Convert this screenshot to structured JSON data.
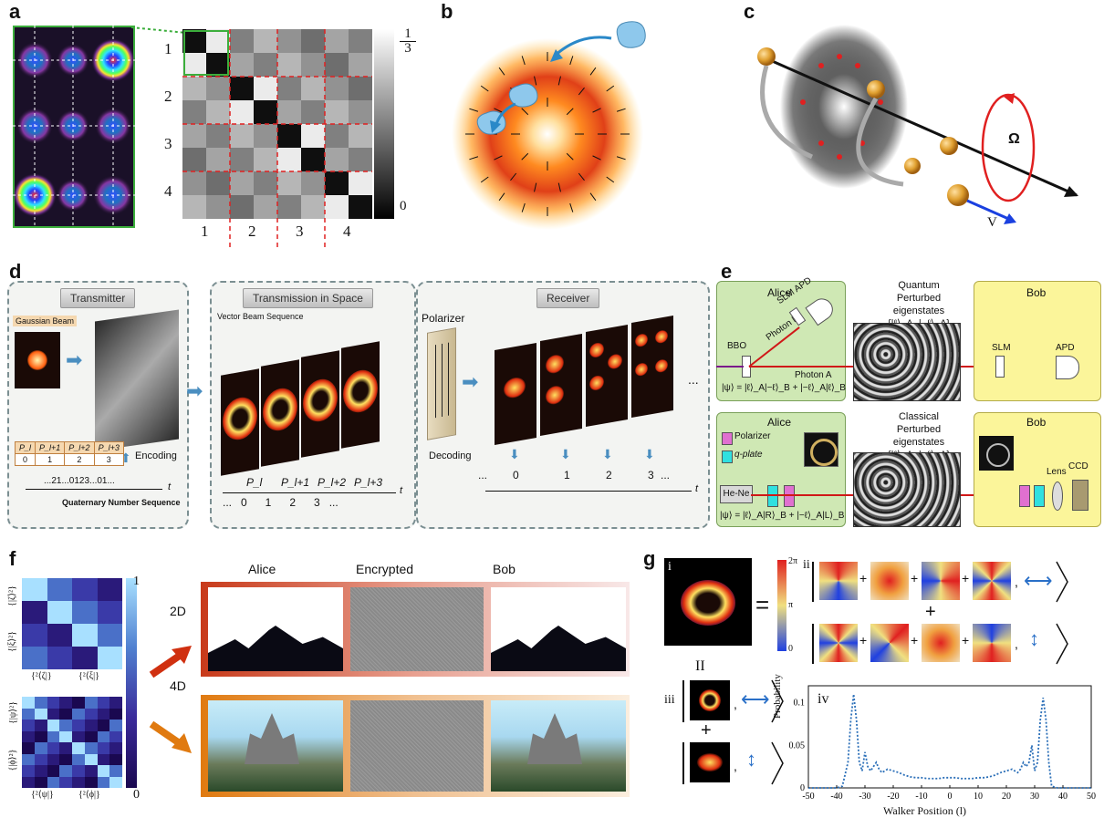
{
  "panels": {
    "a": "a",
    "b": "b",
    "c": "c",
    "d": "d",
    "e": "e",
    "f": "f",
    "g": "g"
  },
  "a": {
    "row_labels": [
      "1",
      "2",
      "3",
      "4"
    ],
    "col_labels": [
      "1",
      "2",
      "3",
      "4"
    ],
    "colorbar_top_num": "1",
    "colorbar_top_den": "3",
    "colorbar_bottom": "0"
  },
  "c": {
    "omega": "Ω",
    "v": "V"
  },
  "d": {
    "transmitter": "Transmitter",
    "transmission": "Transmission in Space",
    "receiver": "Receiver",
    "gaussian": "Gaussian Beam",
    "vector_seq": "Vector Beam Sequence",
    "polarizer": "Polarizer",
    "encoding": "Encoding",
    "decoding": "Decoding",
    "table_headers": [
      "P_l",
      "P_l+1",
      "P_l+2",
      "P_l+3"
    ],
    "table_values": [
      "0",
      "1",
      "2",
      "3"
    ],
    "sequence": "...21...0123...01...",
    "t1": "t",
    "quaternary": "Quaternary Number Sequence",
    "p_labels": [
      "P_l",
      "P_l+1",
      "P_l+2",
      "P_l+3"
    ],
    "mid_values": "...   0      1      2      3   ...",
    "t2": "t",
    "recv_values": [
      "...",
      "0",
      "1",
      "2",
      "3",
      "..."
    ],
    "t3": "t",
    "ellipsis": "..."
  },
  "e": {
    "alice1": "Alice",
    "bob1": "Bob",
    "quantum": "Quantum",
    "perturbed1": "Perturbed eigenstates",
    "set1": "{|ℓ⟩_A, |−ℓ⟩_A}",
    "bbo": "BBO",
    "slm_apd": "SLM APD",
    "photon_b": "Photon B",
    "photon_a": "Photon A",
    "psi1": "|ψ⟩ = |ℓ⟩_A|−ℓ⟩_B + |−ℓ⟩_A|ℓ⟩_B",
    "slm_bob": "SLM",
    "apd_bob": "APD",
    "alice2": "Alice",
    "bob2": "Bob",
    "classical": "Classical",
    "perturbed2": "Perturbed eigenstates",
    "set2": "{|ℓ⟩_A, |−ℓ⟩_A}",
    "legend_polarizer": "Polarizer",
    "legend_qplate": "q-plate",
    "hene": "He-Ne",
    "psi2": "|ψ⟩ = |ℓ⟩_A|R⟩_B + |−ℓ⟩_A|L⟩_B",
    "lens": "Lens",
    "ccd": "CCD"
  },
  "f": {
    "cb_top": "1",
    "cb_bottom": "0",
    "top_y1": "{|ζ⟩²}",
    "top_y2": "{|ξ⟩²}",
    "top_x1": "{²⟨ζ|}",
    "top_x2": "{²⟨ξ|}",
    "bot_y1": "{|ψ⟩²}",
    "bot_y2": "{|ϕ⟩²}",
    "bot_x1": "{²⟨ψ|}",
    "bot_x2": "{²⟨ϕ|}",
    "col_alice": "Alice",
    "col_encrypted": "Encrypted",
    "col_bob": "Bob",
    "row_2d": "2D",
    "row_4d": "4D"
  },
  "g": {
    "i": "i",
    "ii": "ii",
    "iii": "iii",
    "iv": "iv",
    "eq": "=",
    "plus": "+",
    "two_pi": "2π",
    "pi": "π",
    "zero": "0",
    "parallel": "II",
    "ylabel": "Probability",
    "xlabel": "Walker Position (l)",
    "yticks": [
      "0",
      "0.05",
      "0.1"
    ],
    "xticks": [
      "-50",
      "-40",
      "-30",
      "-20",
      "-10",
      "0",
      "10",
      "20",
      "30",
      "40",
      "50"
    ]
  },
  "chart_data": {
    "type": "line",
    "title": "",
    "xlabel": "Walker Position (l)",
    "ylabel": "Probability",
    "xlim": [
      -50,
      50
    ],
    "ylim": [
      0,
      0.12
    ],
    "grid": false,
    "line_style": "dotted",
    "color": "#2b6fb8",
    "x": [
      -50,
      -45,
      -40,
      -38,
      -36,
      -35,
      -34,
      -33,
      -32,
      -31,
      -30,
      -29,
      -28,
      -27,
      -26,
      -25,
      -24,
      -22,
      -20,
      -18,
      -16,
      -14,
      -12,
      -10,
      -8,
      -6,
      -4,
      -2,
      0,
      2,
      4,
      6,
      8,
      10,
      12,
      14,
      16,
      18,
      20,
      22,
      24,
      25,
      26,
      27,
      28,
      29,
      30,
      31,
      32,
      33,
      34,
      35,
      36,
      38,
      40,
      45,
      50
    ],
    "y": [
      0,
      0,
      0,
      0.002,
      0.03,
      0.08,
      0.11,
      0.08,
      0.03,
      0.02,
      0.042,
      0.025,
      0.02,
      0.025,
      0.03,
      0.022,
      0.018,
      0.022,
      0.02,
      0.018,
      0.015,
      0.013,
      0.012,
      0.012,
      0.011,
      0.011,
      0.011,
      0.012,
      0.012,
      0.012,
      0.011,
      0.011,
      0.011,
      0.012,
      0.012,
      0.013,
      0.015,
      0.018,
      0.02,
      0.022,
      0.018,
      0.022,
      0.03,
      0.025,
      0.03,
      0.05,
      0.02,
      0.03,
      0.08,
      0.106,
      0.08,
      0.03,
      0.002,
      0,
      0,
      0,
      0
    ]
  }
}
